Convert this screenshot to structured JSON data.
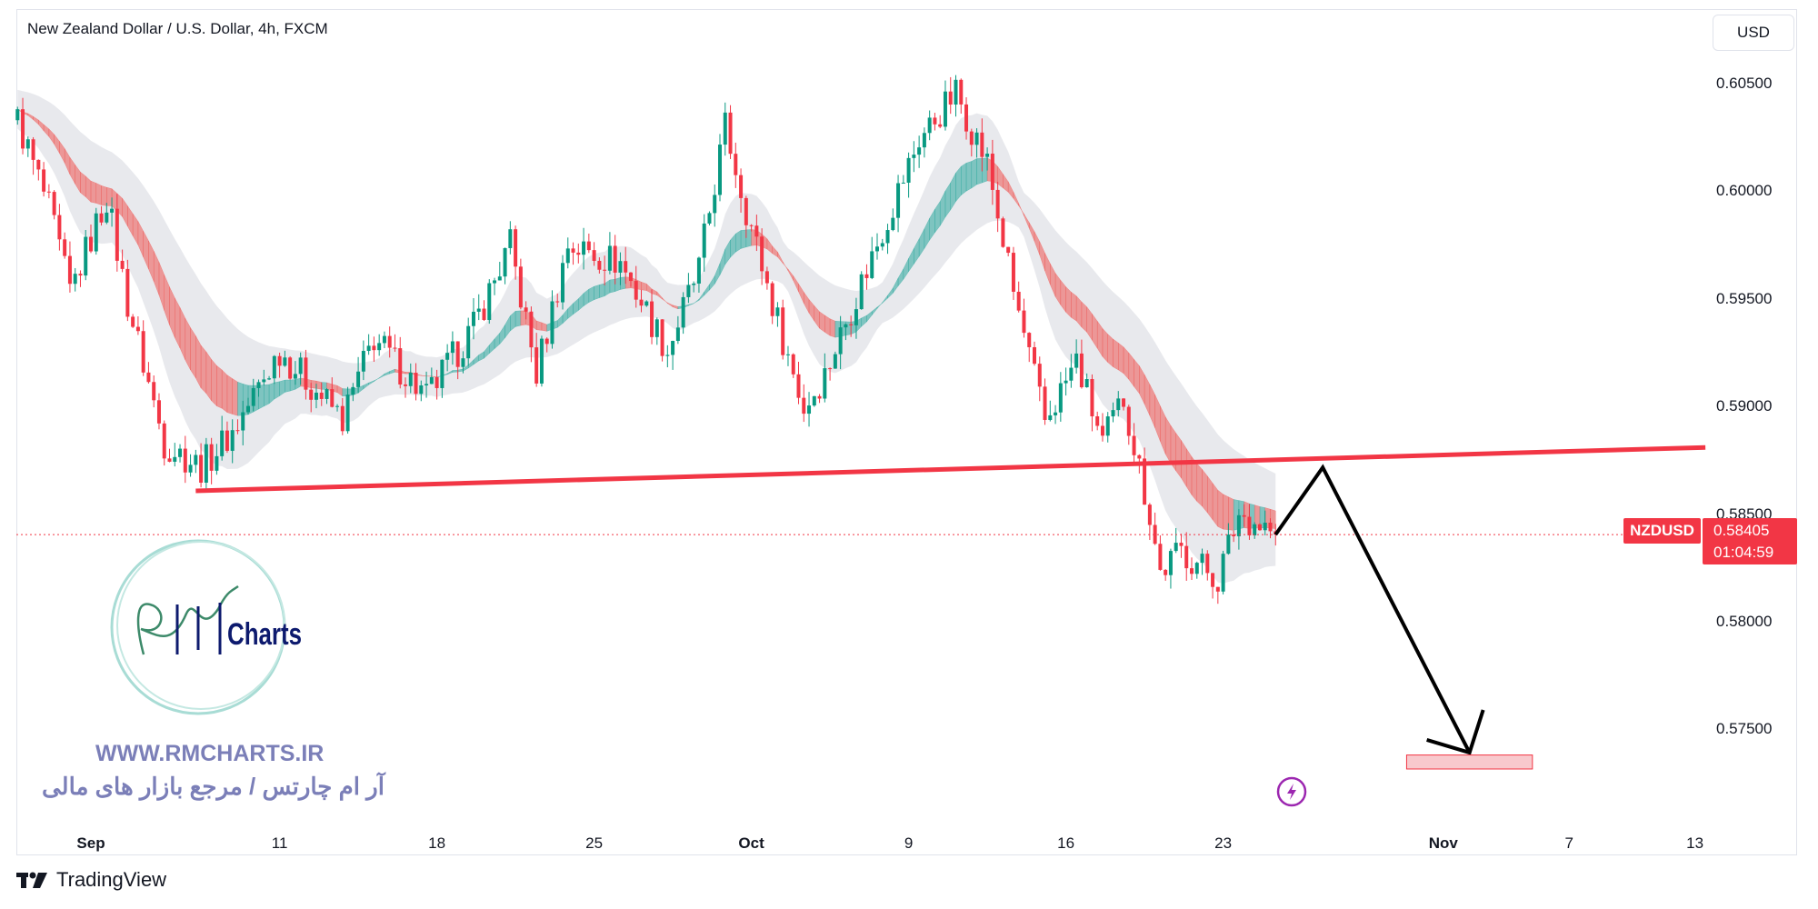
{
  "header": {
    "title": "New Zealand Dollar / U.S. Dollar, 4h, FXCM",
    "currency_button": "USD"
  },
  "price_tag": {
    "symbol": "NZDUSD",
    "price": "0.58405",
    "countdown": "01:04:59",
    "color": "#f23645"
  },
  "watermark": {
    "logo_text": "RM Charts",
    "website": "WWW.RMCHARTS.IR",
    "tagline": "آر ام چارتس / مرجع بازار های مالی"
  },
  "footer": {
    "brand": "TradingView"
  },
  "icons": {
    "alert": "lightning-icon",
    "brand": "tradingview-logo-icon"
  },
  "colors": {
    "up": "#089981",
    "down": "#f23645",
    "ribbon_up": "#26a69a",
    "ribbon_down": "#ef5350",
    "band": "#d1d4dc",
    "trendline": "#f23645",
    "arrow": "#000000",
    "target": "#f8c9cd"
  },
  "chart_data": {
    "type": "candlestick",
    "symbol": "NZDUSD",
    "timeframe": "4h",
    "y_ticks": [
      "0.60500",
      "0.60000",
      "0.59500",
      "0.59000",
      "0.58500",
      "0.58000",
      "0.57500"
    ],
    "ylim": [
      0.5715,
      0.6065
    ],
    "x_ticks": [
      {
        "label": "Sep",
        "date": "2023-09-01",
        "bold": true
      },
      {
        "label": "11",
        "date": "2023-09-11",
        "bold": false
      },
      {
        "label": "18",
        "date": "2023-09-18",
        "bold": false
      },
      {
        "label": "25",
        "date": "2023-09-25",
        "bold": false
      },
      {
        "label": "Oct",
        "date": "2023-10-02",
        "bold": true
      },
      {
        "label": "9",
        "date": "2023-10-09",
        "bold": false
      },
      {
        "label": "16",
        "date": "2023-10-16",
        "bold": false
      },
      {
        "label": "23",
        "date": "2023-10-23",
        "bold": false
      },
      {
        "label": "Nov",
        "date": "2023-11-01",
        "bold": true
      },
      {
        "label": "7",
        "date": "2023-11-07",
        "bold": false
      },
      {
        "label": "13",
        "date": "2023-11-13",
        "bold": false
      }
    ],
    "approx_price_path": [
      [
        "2023-08-29 16:00",
        0.6033
      ],
      [
        "2023-08-30 16:00",
        0.5992
      ],
      [
        "2023-08-31 08:00",
        0.5953
      ],
      [
        "2023-09-01 12:00",
        0.5997
      ],
      [
        "2023-09-04 04:00",
        0.5948
      ],
      [
        "2023-09-05 08:00",
        0.5883
      ],
      [
        "2023-09-06 12:00",
        0.5872
      ],
      [
        "2023-09-07 12:00",
        0.5888
      ],
      [
        "2023-09-11 00:00",
        0.5926
      ],
      [
        "2023-09-13 00:00",
        0.5894
      ],
      [
        "2023-09-14 00:00",
        0.5932
      ],
      [
        "2023-09-15 16:00",
        0.5904
      ],
      [
        "2023-09-19 04:00",
        0.5937
      ],
      [
        "2023-09-20 08:00",
        0.5975
      ],
      [
        "2023-09-21 04:00",
        0.5915
      ],
      [
        "2023-09-22 04:00",
        0.5975
      ],
      [
        "2023-09-25 20:00",
        0.5967
      ],
      [
        "2023-09-27 08:00",
        0.5926
      ],
      [
        "2023-09-28 08:00",
        0.5964
      ],
      [
        "2023-09-29 04:00",
        0.603
      ],
      [
        "2023-09-29 20:00",
        0.5992
      ],
      [
        "2023-10-02 16:00",
        0.5948
      ],
      [
        "2023-10-03 16:00",
        0.5899
      ],
      [
        "2023-10-04 08:00",
        0.5915
      ],
      [
        "2023-10-05 20:00",
        0.597
      ],
      [
        "2023-10-09 08:00",
        0.6024
      ],
      [
        "2023-10-10 12:00",
        0.6046
      ],
      [
        "2023-10-11 12:00",
        0.6013
      ],
      [
        "2023-10-12 08:00",
        0.5953
      ],
      [
        "2023-10-13 08:00",
        0.5893
      ],
      [
        "2023-10-16 08:00",
        0.5921
      ],
      [
        "2023-10-17 04:00",
        0.5883
      ],
      [
        "2023-10-17 20:00",
        0.5904
      ],
      [
        "2023-10-18 16:00",
        0.585
      ],
      [
        "2023-10-19 00:00",
        0.5823
      ],
      [
        "2023-10-19 16:00",
        0.5833
      ],
      [
        "2023-10-20 20:00",
        0.582
      ],
      [
        "2023-10-23 12:00",
        0.585
      ],
      [
        "2023-10-24 08:00",
        0.5844
      ],
      [
        "2023-10-24 16:00",
        0.58405
      ]
    ],
    "last_price": 0.58405,
    "trendline": {
      "from": [
        "2023-09-06 08:00",
        0.58608
      ],
      "to": [
        "2023-11-13 08:00",
        0.5881
      ]
    },
    "projection_arrow": [
      [
        "2023-10-24 16:00",
        0.58405
      ],
      [
        "2023-10-26 04:00",
        0.58717
      ],
      [
        "2023-11-01 20:00",
        0.57392
      ]
    ],
    "target_zone": {
      "from": "2023-10-30 20:00",
      "to": "2023-11-03 20:00",
      "top": 0.57381,
      "bottom": 0.57316
    }
  }
}
